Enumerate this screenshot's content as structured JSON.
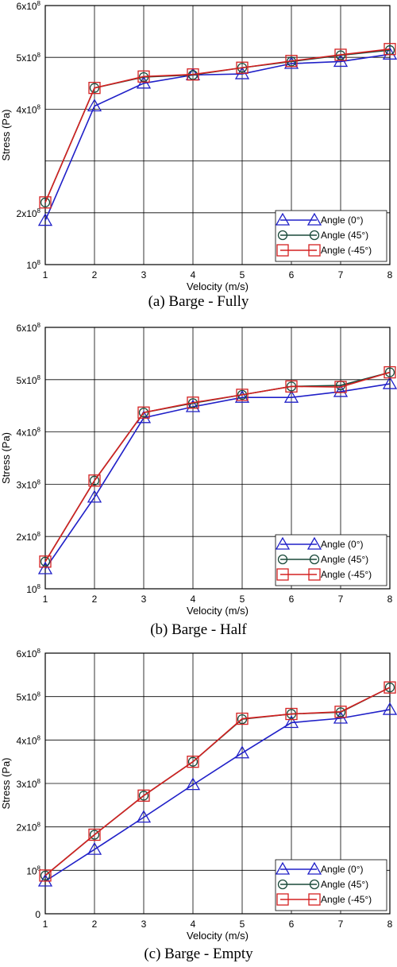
{
  "chart_data": [
    {
      "type": "line",
      "caption": "(a) Barge - Fully",
      "xlabel": "Velocity (m/s)",
      "ylabel": "Stress (Pa)",
      "x": [
        1,
        2,
        3,
        4,
        5,
        6,
        7,
        8
      ],
      "xlim": [
        1,
        8
      ],
      "ylim": [
        100000000,
        600000000
      ],
      "yticks": [
        100000000,
        200000000,
        400000000,
        500000000,
        600000000
      ],
      "ytick_labels": [
        {
          "mant": "",
          "exp": "8"
        },
        {
          "mant": "2x",
          "exp": "8"
        },
        {
          "mant": "4x",
          "exp": "8"
        },
        {
          "mant": "5x",
          "exp": "8"
        },
        {
          "mant": "6x",
          "exp": "8"
        }
      ],
      "grid": true,
      "legend_position": "bottom-right",
      "series": [
        {
          "name": "Angle (0°)",
          "marker": "triangle",
          "color": "#2020c8",
          "values": [
            185000000,
            406000000,
            450000000,
            466000000,
            468000000,
            488000000,
            492000000,
            506000000
          ]
        },
        {
          "name": "Angle (45°)",
          "marker": "circle",
          "color": "#1a4a3a",
          "values": [
            220000000,
            441000000,
            462000000,
            466000000,
            480000000,
            492000000,
            504000000,
            514000000
          ]
        },
        {
          "name": "Angle (-45°)",
          "marker": "square",
          "color": "#d42020",
          "values": [
            220000000,
            441000000,
            463000000,
            467000000,
            480000000,
            493000000,
            505000000,
            516000000
          ]
        }
      ]
    },
    {
      "type": "line",
      "caption": "(b) Barge - Half",
      "xlabel": "Velocity (m/s)",
      "ylabel": "Stress (Pa)",
      "x": [
        1,
        2,
        3,
        4,
        5,
        6,
        7,
        8
      ],
      "xlim": [
        1,
        8
      ],
      "ylim": [
        100000000,
        600000000
      ],
      "yticks": [
        100000000,
        200000000,
        300000000,
        400000000,
        500000000,
        600000000
      ],
      "ytick_labels": [
        {
          "mant": "",
          "exp": "8"
        },
        {
          "mant": "2x",
          "exp": "8"
        },
        {
          "mant": "3x",
          "exp": "8"
        },
        {
          "mant": "4x",
          "exp": "8"
        },
        {
          "mant": "5x",
          "exp": "8"
        },
        {
          "mant": "6x",
          "exp": "8"
        }
      ],
      "grid": true,
      "legend_position": "bottom-right",
      "series": [
        {
          "name": "Angle (0°)",
          "marker": "triangle",
          "color": "#2020c8",
          "values": [
            138000000,
            275000000,
            427000000,
            448000000,
            466000000,
            466000000,
            477000000,
            492000000
          ]
        },
        {
          "name": "Angle (45°)",
          "marker": "circle",
          "color": "#1a4a3a",
          "values": [
            152000000,
            307000000,
            437000000,
            455000000,
            471000000,
            487000000,
            489000000,
            514000000
          ]
        },
        {
          "name": "Angle (-45°)",
          "marker": "square",
          "color": "#d42020",
          "values": [
            152000000,
            307000000,
            437000000,
            456000000,
            471000000,
            487000000,
            486000000,
            514000000
          ]
        }
      ]
    },
    {
      "type": "line",
      "caption": "(c) Barge - Empty",
      "xlabel": "Velocity (m/s)",
      "ylabel": "Stress (Pa)",
      "x": [
        1,
        2,
        3,
        4,
        5,
        6,
        7,
        8
      ],
      "xlim": [
        1,
        8
      ],
      "ylim": [
        0,
        600000000
      ],
      "yticks": [
        0,
        100000000,
        200000000,
        300000000,
        400000000,
        500000000,
        600000000
      ],
      "ytick_labels": [
        {
          "mant": "0",
          "exp": ""
        },
        {
          "mant": "",
          "exp": "8"
        },
        {
          "mant": "2x",
          "exp": "8"
        },
        {
          "mant": "3x",
          "exp": "8"
        },
        {
          "mant": "4x",
          "exp": "8"
        },
        {
          "mant": "5x",
          "exp": "8"
        },
        {
          "mant": "6x",
          "exp": "8"
        }
      ],
      "grid": true,
      "legend_position": "bottom-right",
      "series": [
        {
          "name": "Angle (0°)",
          "marker": "triangle",
          "color": "#2020c8",
          "values": [
            75000000,
            148000000,
            222000000,
            297000000,
            370000000,
            440000000,
            450000000,
            470000000
          ]
        },
        {
          "name": "Angle (45°)",
          "marker": "circle",
          "color": "#1a4a3a",
          "values": [
            88000000,
            182000000,
            272000000,
            350000000,
            448000000,
            460000000,
            464000000,
            521000000
          ]
        },
        {
          "name": "Angle (-45°)",
          "marker": "square",
          "color": "#d42020",
          "values": [
            88000000,
            182000000,
            272000000,
            350000000,
            449000000,
            460000000,
            465000000,
            521000000
          ]
        }
      ]
    }
  ]
}
